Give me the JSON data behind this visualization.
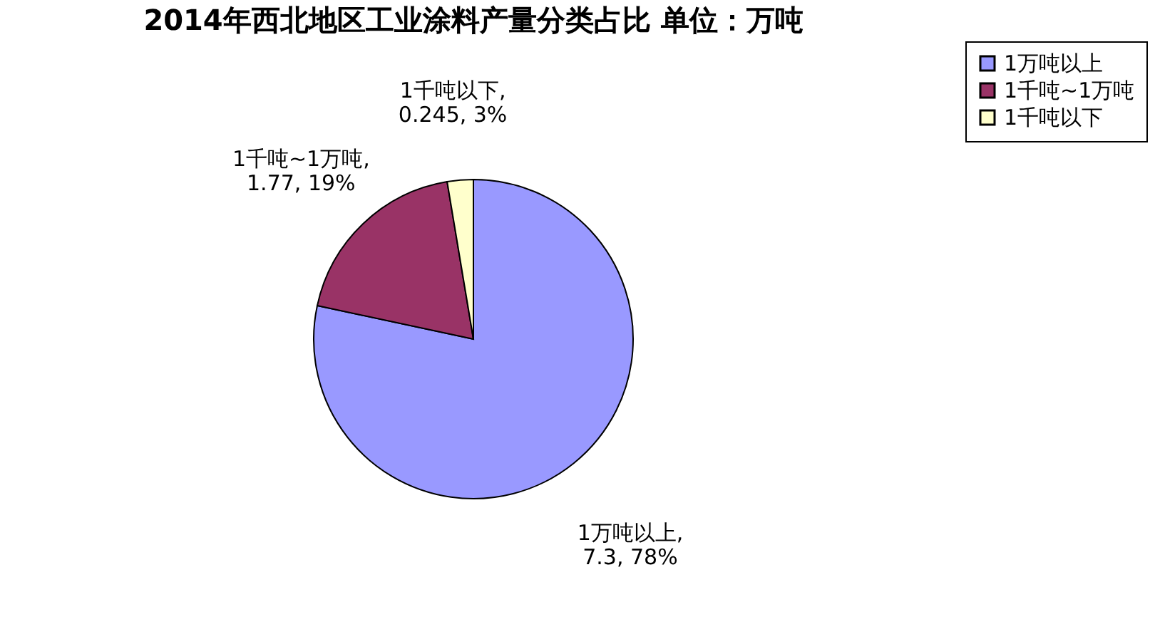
{
  "chart_data": {
    "type": "pie",
    "title": "2014年西北地区工业涂料产量分类占比 单位：万吨",
    "categories": [
      "1万吨以上",
      "1千吨~1万吨",
      "1千吨以下"
    ],
    "values": [
      7.3,
      1.77,
      0.245
    ],
    "colors": [
      "#9999ff",
      "#993366",
      "#ffffcc"
    ],
    "value_labels": [
      "1万吨以上,\n7.3, 78%",
      "1千吨~1万吨,\n1.77, 19%",
      "1千吨以下,\n0.245, 3%"
    ],
    "legend": "right"
  }
}
